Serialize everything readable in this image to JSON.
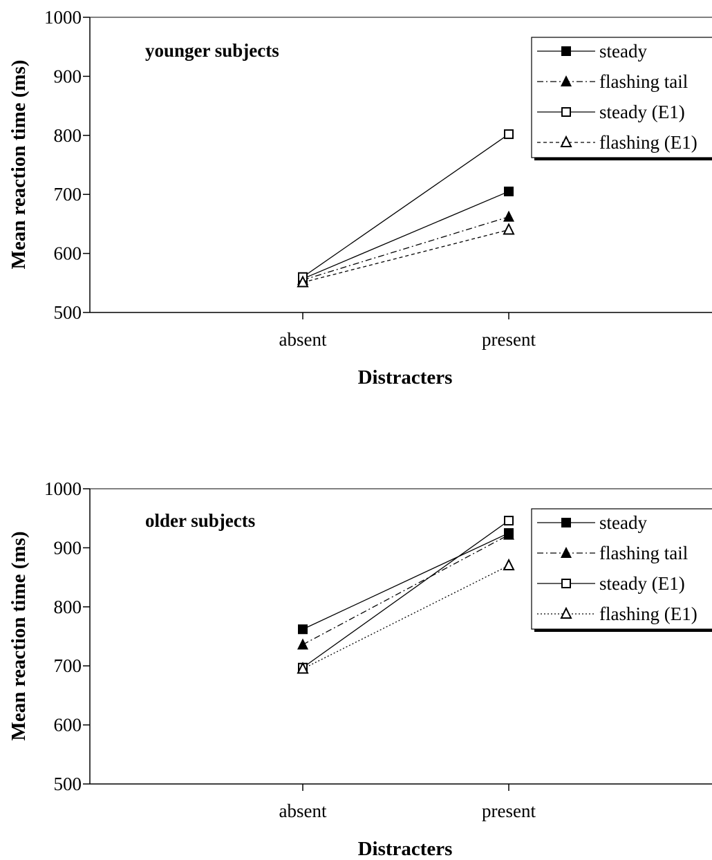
{
  "chart_data": [
    {
      "type": "line",
      "title": "younger subjects",
      "xlabel": "Distracters",
      "ylabel": "Mean reaction time (ms)",
      "categories": [
        "absent",
        "present"
      ],
      "ylim": [
        500,
        1000
      ],
      "yticks": [
        500,
        600,
        700,
        800,
        900,
        1000
      ],
      "grid": false,
      "legend_position": "top-right",
      "series": [
        {
          "name": "steady",
          "values": [
            557,
            705
          ],
          "marker": "filled-square",
          "line": "solid"
        },
        {
          "name": "flashing tail",
          "values": [
            555,
            662
          ],
          "marker": "filled-triangle",
          "line": "dash-dot"
        },
        {
          "name": "steady (E1)",
          "values": [
            560,
            802
          ],
          "marker": "open-square",
          "line": "solid"
        },
        {
          "name": "flashing (E1)",
          "values": [
            551,
            640
          ],
          "marker": "open-triangle",
          "line": "dashed"
        }
      ]
    },
    {
      "type": "line",
      "title": "older subjects",
      "xlabel": "Distracters",
      "ylabel": "Mean reaction time (ms)",
      "categories": [
        "absent",
        "present"
      ],
      "ylim": [
        500,
        1000
      ],
      "yticks": [
        500,
        600,
        700,
        800,
        900,
        1000
      ],
      "grid": false,
      "legend_position": "top-right",
      "series": [
        {
          "name": "steady",
          "values": [
            762,
            925
          ],
          "marker": "filled-square",
          "line": "solid"
        },
        {
          "name": "flashing tail",
          "values": [
            736,
            922
          ],
          "marker": "filled-triangle",
          "line": "dash-dot"
        },
        {
          "name": "steady (E1)",
          "values": [
            697,
            946
          ],
          "marker": "open-square",
          "line": "solid"
        },
        {
          "name": "flashing (E1)",
          "values": [
            695,
            870
          ],
          "marker": "open-triangle",
          "line": "dotted"
        }
      ]
    }
  ]
}
